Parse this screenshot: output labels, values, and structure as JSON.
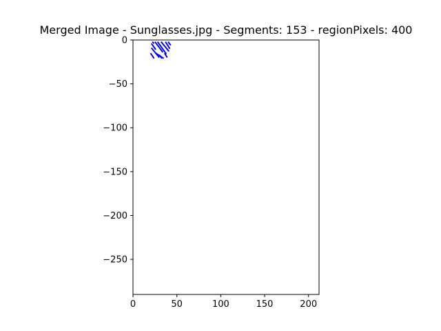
{
  "chart_data": {
    "type": "scatter",
    "title": "Merged Image - Sunglasses.jpg - Segments: 153 - regionPixels: 400",
    "xlabel": "",
    "ylabel": "",
    "xlim": [
      0,
      212
    ],
    "ylim": [
      -290,
      0
    ],
    "grid": false,
    "xticks": [
      0,
      50,
      100,
      150,
      200
    ],
    "yticks": [
      0,
      -50,
      -100,
      -150,
      -200,
      -250
    ],
    "colors": {
      "segment": "#0000ff",
      "axes": "#000000"
    },
    "series": [
      {
        "segments": [
          [
            [
              22,
              -2
            ],
            [
              24,
              -4
            ]
          ],
          [
            [
              21,
              -4
            ],
            [
              26,
              -11
            ]
          ],
          [
            [
              25,
              -2
            ],
            [
              34,
              -14
            ]
          ],
          [
            [
              21,
              -9
            ],
            [
              30,
              -20
            ]
          ],
          [
            [
              28,
              -2
            ],
            [
              38,
              -16
            ]
          ],
          [
            [
              20,
              -15
            ],
            [
              24,
              -21
            ]
          ],
          [
            [
              32,
              -2
            ],
            [
              41,
              -13
            ]
          ],
          [
            [
              26,
              -15
            ],
            [
              35,
              -21
            ]
          ],
          [
            [
              37,
              -2
            ],
            [
              42,
              -10
            ]
          ],
          [
            [
              30,
              -17
            ],
            [
              33,
              -21
            ]
          ],
          [
            [
              40,
              -2
            ],
            [
              43,
              -6
            ]
          ],
          [
            [
              36,
              -15
            ],
            [
              39,
              -20
            ]
          ]
        ]
      }
    ]
  }
}
